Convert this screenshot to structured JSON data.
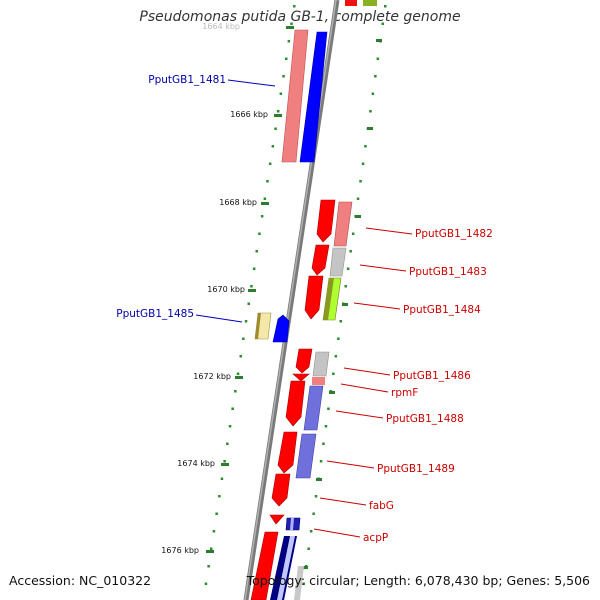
{
  "title": "Pseudomonas putida GB-1, complete genome",
  "accession": "Accession: NC_010322",
  "topology": "Topology: circular; Length: 6,078,430 bp; Genes: 5,506",
  "ticks": [
    "1664 kbp",
    "1666 kbp",
    "1668 kbp",
    "1670 kbp",
    "1672 kbp",
    "1674 kbp",
    "1676 kbp"
  ],
  "gene_labels_left": [
    "PputGB1_1481",
    "PputGB1_1485"
  ],
  "gene_labels_right": [
    "PputGB1_1482",
    "PputGB1_1483",
    "PputGB1_1484",
    "PputGB1_1486",
    "rpmF",
    "PputGB1_1488",
    "PputGB1_1489",
    "fabG",
    "acpP"
  ],
  "colors": {
    "forward_cds": "#ff0000",
    "reverse_cds": "#0000ff",
    "left_label": "#0000aa",
    "right_label": "#cc0000",
    "tick_mark": "#2e8b2e",
    "backbone": "#808080"
  }
}
